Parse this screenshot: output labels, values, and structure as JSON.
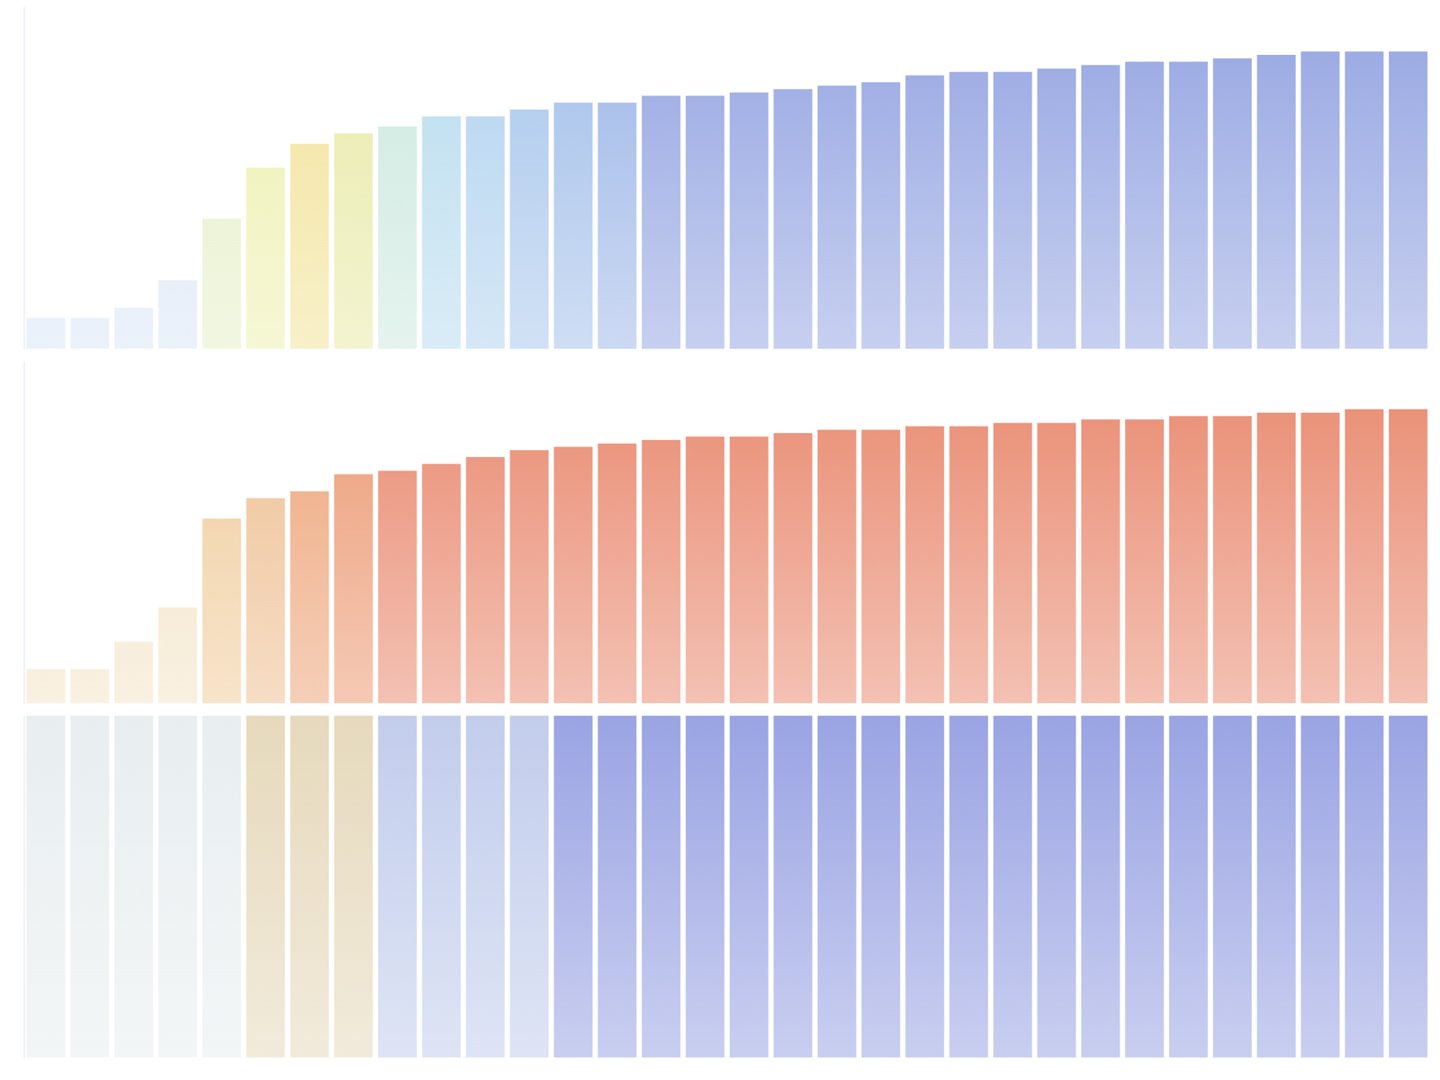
{
  "chart_data": [
    {
      "type": "bar",
      "categories": [
        null,
        null,
        null,
        null,
        null,
        null,
        null,
        null,
        null,
        null,
        null,
        null,
        null,
        null,
        null,
        null,
        null,
        null,
        null,
        null,
        null,
        null,
        null,
        null,
        null,
        null,
        null,
        null,
        null,
        null,
        null,
        null
      ],
      "values": [
        0.09,
        0.09,
        0.12,
        0.2,
        0.38,
        0.53,
        0.6,
        0.63,
        0.65,
        0.68,
        0.68,
        0.7,
        0.72,
        0.72,
        0.74,
        0.74,
        0.75,
        0.76,
        0.77,
        0.78,
        0.8,
        0.81,
        0.81,
        0.82,
        0.83,
        0.84,
        0.84,
        0.85,
        0.86,
        0.87,
        0.87,
        0.87
      ],
      "colors": [
        "#dbe6f5",
        "#dbe6f5",
        "#dbe6f5",
        "#dbe6f5",
        "#e6efc8",
        "#eef0b0",
        "#f2e39a",
        "#e9eaa8",
        "#cde9df",
        "#b9dcef",
        "#b2d3ef",
        "#a9c7ec",
        "#a4c0ea",
        "#9fb8e8",
        "#96a6e2",
        "#96a6e2",
        "#96a6e2",
        "#96a6e2",
        "#96a6e2",
        "#96a6e2",
        "#96a6e2",
        "#96a6e2",
        "#96a6e2",
        "#96a6e2",
        "#96a6e2",
        "#96a6e2",
        "#96a6e2",
        "#96a6e2",
        "#96a6e2",
        "#96a6e2",
        "#96a6e2",
        "#96a6e2"
      ],
      "ylim": [
        0,
        1
      ],
      "tick_labels": false,
      "grid": false
    },
    {
      "type": "bar",
      "categories": [
        null,
        null,
        null,
        null,
        null,
        null,
        null,
        null,
        null,
        null,
        null,
        null,
        null,
        null,
        null,
        null,
        null,
        null,
        null,
        null,
        null,
        null,
        null,
        null,
        null,
        null,
        null,
        null,
        null,
        null,
        null,
        null
      ],
      "values": [
        0.1,
        0.1,
        0.18,
        0.28,
        0.54,
        0.6,
        0.62,
        0.67,
        0.68,
        0.7,
        0.72,
        0.74,
        0.75,
        0.76,
        0.77,
        0.78,
        0.78,
        0.79,
        0.8,
        0.8,
        0.81,
        0.81,
        0.82,
        0.82,
        0.83,
        0.83,
        0.84,
        0.84,
        0.85,
        0.85,
        0.86,
        0.86
      ],
      "colors": [
        "#f3e3c6",
        "#f3e3c6",
        "#f3e3c6",
        "#f3e3c6",
        "#f0cc9c",
        "#eebf92",
        "#eda57a",
        "#ec9a74",
        "#e98a70",
        "#e98a70",
        "#e98a70",
        "#e98a70",
        "#e98a70",
        "#e98a70",
        "#e98a70",
        "#e98a70",
        "#e98a70",
        "#e98a70",
        "#e98a70",
        "#e98a70",
        "#e98a70",
        "#e98a70",
        "#e98a70",
        "#e98a70",
        "#e98a70",
        "#e98a70",
        "#e98a70",
        "#e98a70",
        "#e98a70",
        "#e98a70",
        "#e98a70",
        "#e98a70"
      ],
      "ylim": [
        0,
        1
      ],
      "tick_labels": false,
      "grid": false
    },
    {
      "type": "bar",
      "categories": [
        null,
        null,
        null,
        null,
        null,
        null,
        null,
        null,
        null,
        null,
        null,
        null,
        null,
        null,
        null,
        null,
        null,
        null,
        null,
        null,
        null,
        null,
        null,
        null,
        null,
        null,
        null,
        null,
        null,
        null,
        null,
        null
      ],
      "values": [
        1,
        1,
        1,
        1,
        1,
        1,
        1,
        1,
        1,
        1,
        1,
        1,
        1,
        1,
        1,
        1,
        1,
        1,
        1,
        1,
        1,
        1,
        1,
        1,
        1,
        1,
        1,
        1,
        1,
        1,
        1,
        1
      ],
      "colors": [
        "#e8eef0",
        "#e8eef0",
        "#e8eef0",
        "#e8eef0",
        "#e8eef0",
        "#e6d9bc",
        "#e6d9bc",
        "#e6d9bc",
        "#c2cdec",
        "#c2cdec",
        "#c2cdec",
        "#c2cdec",
        "#9aa4e3",
        "#9aa4e3",
        "#9aa4e3",
        "#9aa4e3",
        "#9aa4e3",
        "#9aa4e3",
        "#9aa4e3",
        "#9aa4e3",
        "#9aa4e3",
        "#9aa4e3",
        "#9aa4e3",
        "#9aa4e3",
        "#9aa4e3",
        "#9aa4e3",
        "#9aa4e3",
        "#9aa4e3",
        "#9aa4e3",
        "#9aa4e3",
        "#9aa4e3",
        "#9aa4e3"
      ],
      "ylim": [
        0,
        1
      ],
      "tick_labels": false,
      "grid": false
    }
  ]
}
